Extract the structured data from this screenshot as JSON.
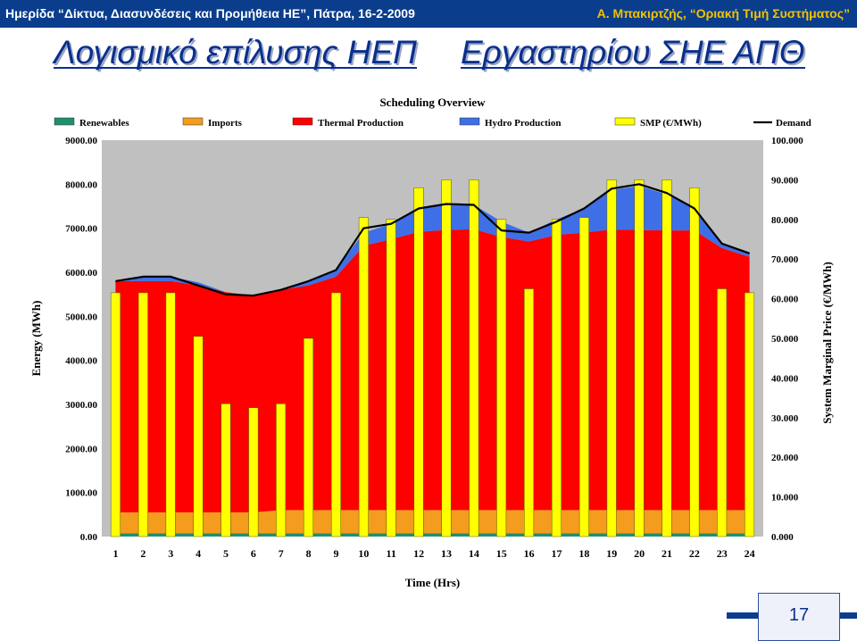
{
  "header": {
    "left_text": "Ημερίδα “Δίκτυα, Διασυνδέσεις και Προμήθεια ΗΕ”, Πάτρα, 16-2-2009",
    "right_text": "Α. Μπακιρτζής, “Οριακή Τιμή Συστήματος”"
  },
  "title": {
    "part1": "Λογισμικό επίλυσης ΗΕΠ",
    "part2": "Εργαστηρίου ΣΗΕ ΑΠΘ"
  },
  "page_number": "17",
  "colors": {
    "header_bg": "#0a3d8c",
    "header_right": "#f2c200",
    "title": "#0a2f8c",
    "renewables": "#1f8f6f",
    "imports": "#f39c1e",
    "thermal": "#ff0000",
    "hydro": "#3f6fe6",
    "smp": "#ffff00",
    "demand": "#000000",
    "plot_bg": "#c0c0c0"
  },
  "chart_data": {
    "type": "bar",
    "title": "Scheduling Overview",
    "xlabel": "Time (Hrs)",
    "ylabel": "Energy (MWh)",
    "y2label": "System Marginal Price (€/MWh)",
    "categories": [
      "1",
      "2",
      "3",
      "4",
      "5",
      "6",
      "7",
      "8",
      "9",
      "10",
      "11",
      "12",
      "13",
      "14",
      "15",
      "16",
      "17",
      "18",
      "19",
      "20",
      "21",
      "22",
      "23",
      "24"
    ],
    "ylim": [
      0,
      9000
    ],
    "y2lim": [
      0,
      100
    ],
    "yticks": [
      "0.00",
      "1000.00",
      "2000.00",
      "3000.00",
      "4000.00",
      "5000.00",
      "6000.00",
      "7000.00",
      "8000.00",
      "9000.00"
    ],
    "y2ticks": [
      "0.000",
      "10.000",
      "20.000",
      "30.000",
      "40.000",
      "50.000",
      "60.000",
      "70.000",
      "80.000",
      "90.000",
      "100.000"
    ],
    "legend_position": "top",
    "grid": false,
    "series": [
      {
        "name": "Renewables",
        "kind": "stacked-area",
        "color": "#1f8f6f",
        "values": [
          70,
          70,
          70,
          70,
          70,
          70,
          70,
          70,
          70,
          70,
          70,
          70,
          70,
          70,
          70,
          70,
          70,
          70,
          70,
          70,
          70,
          70,
          70,
          70
        ]
      },
      {
        "name": "Imports",
        "kind": "stacked-area",
        "color": "#f39c1e",
        "values": [
          480,
          480,
          480,
          480,
          480,
          480,
          530,
          530,
          530,
          530,
          530,
          530,
          530,
          530,
          530,
          530,
          530,
          530,
          530,
          530,
          530,
          530,
          530,
          530
        ]
      },
      {
        "name": "Thermal Production",
        "kind": "stacked-area",
        "color": "#ff0000",
        "values": [
          5250,
          5250,
          5250,
          5150,
          5000,
          4920,
          5000,
          5100,
          5300,
          6000,
          6150,
          6320,
          6360,
          6380,
          6200,
          6100,
          6250,
          6300,
          6370,
          6360,
          6350,
          6350,
          5950,
          5750
        ]
      },
      {
        "name": "Hydro Production",
        "kind": "stacked-area",
        "color": "#3f6fe6",
        "values": [
          0,
          100,
          100,
          70,
          0,
          0,
          20,
          100,
          150,
          300,
          350,
          550,
          580,
          550,
          350,
          200,
          350,
          550,
          900,
          1000,
          820,
          550,
          100,
          80
        ]
      },
      {
        "name": "SMP (€/MWh)",
        "kind": "bar",
        "axis": "right",
        "color": "#ffff00",
        "values": [
          61.5,
          61.5,
          61.5,
          50.5,
          33.5,
          32.5,
          33.5,
          50,
          61.5,
          80.5,
          80,
          88,
          90,
          90,
          80,
          62.5,
          80,
          80.5,
          90,
          90,
          90,
          88,
          62.5,
          61.5
        ]
      },
      {
        "name": "Demand",
        "kind": "line",
        "color": "#000000",
        "values": [
          5800,
          5900,
          5900,
          5700,
          5500,
          5470,
          5600,
          5800,
          6050,
          7000,
          7100,
          7450,
          7550,
          7530,
          6950,
          6900,
          7150,
          7450,
          7900,
          8000,
          7800,
          7450,
          6650,
          6430
        ]
      }
    ]
  }
}
